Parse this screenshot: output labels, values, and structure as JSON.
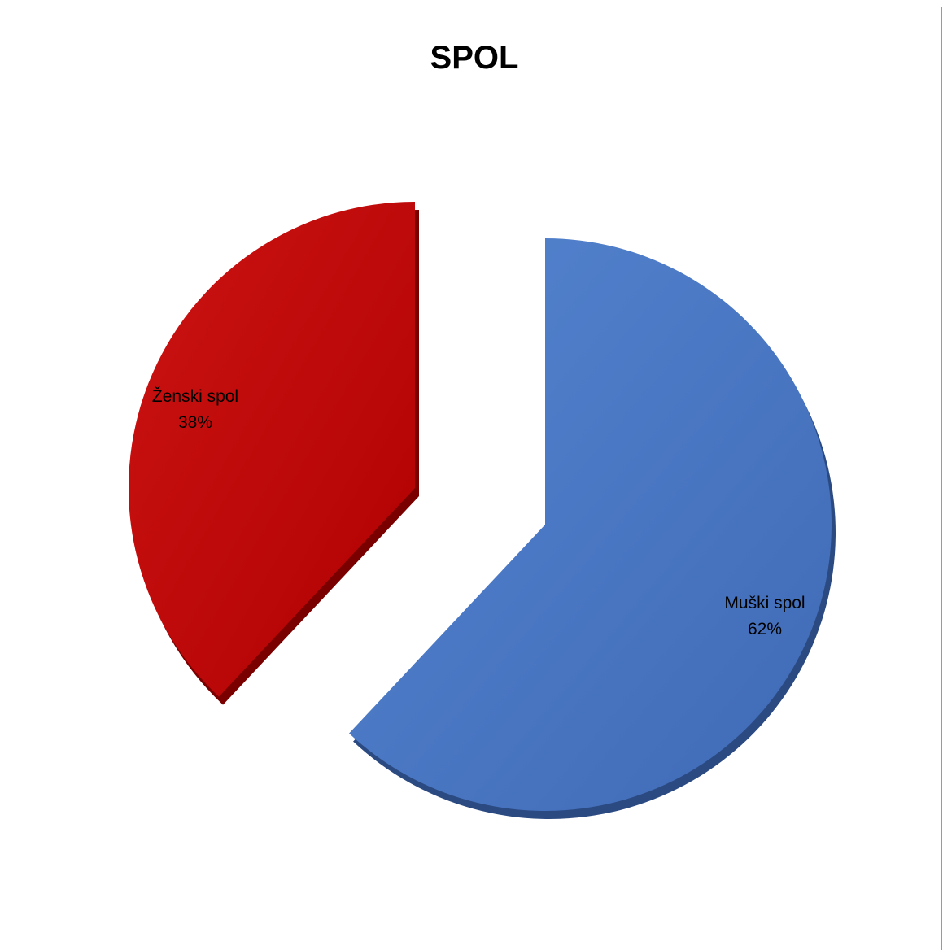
{
  "chart_data": {
    "type": "pie",
    "title": "SPOL",
    "slices": [
      {
        "label": "Muški spol",
        "percent_label": "62%",
        "value": 62,
        "color": "#4472C4",
        "shadow": "#2B4A82",
        "exploded": true
      },
      {
        "label": "Ženski spol",
        "percent_label": "38%",
        "value": 38,
        "color": "#C00000",
        "shadow": "#7A0000",
        "exploded": true
      }
    ],
    "style": "3d-exploded"
  }
}
